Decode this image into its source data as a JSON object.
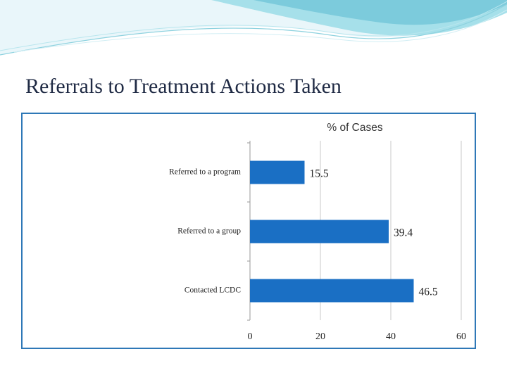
{
  "slide": {
    "title": "Referrals to Treatment Actions Taken",
    "colors": {
      "title": "#1f2a44",
      "frame": "#2e78b7",
      "header_light": "#e6f5f9",
      "header_teal": "#9fdde8"
    }
  },
  "chart_data": {
    "type": "bar",
    "orientation": "horizontal",
    "title": "% of Cases",
    "xlabel": "",
    "ylabel": "",
    "categories": [
      "Referred to a program",
      "Referred to a group",
      "Contacted LCDC"
    ],
    "values": [
      15.5,
      39.4,
      46.5
    ],
    "value_labels": [
      "15.5",
      "39.4",
      "46.5"
    ],
    "xlim": [
      0,
      60
    ],
    "xticks": [
      "0",
      "20",
      "40",
      "60"
    ],
    "grid": true,
    "legend": "none",
    "bar_color": "#1a6fc4"
  }
}
